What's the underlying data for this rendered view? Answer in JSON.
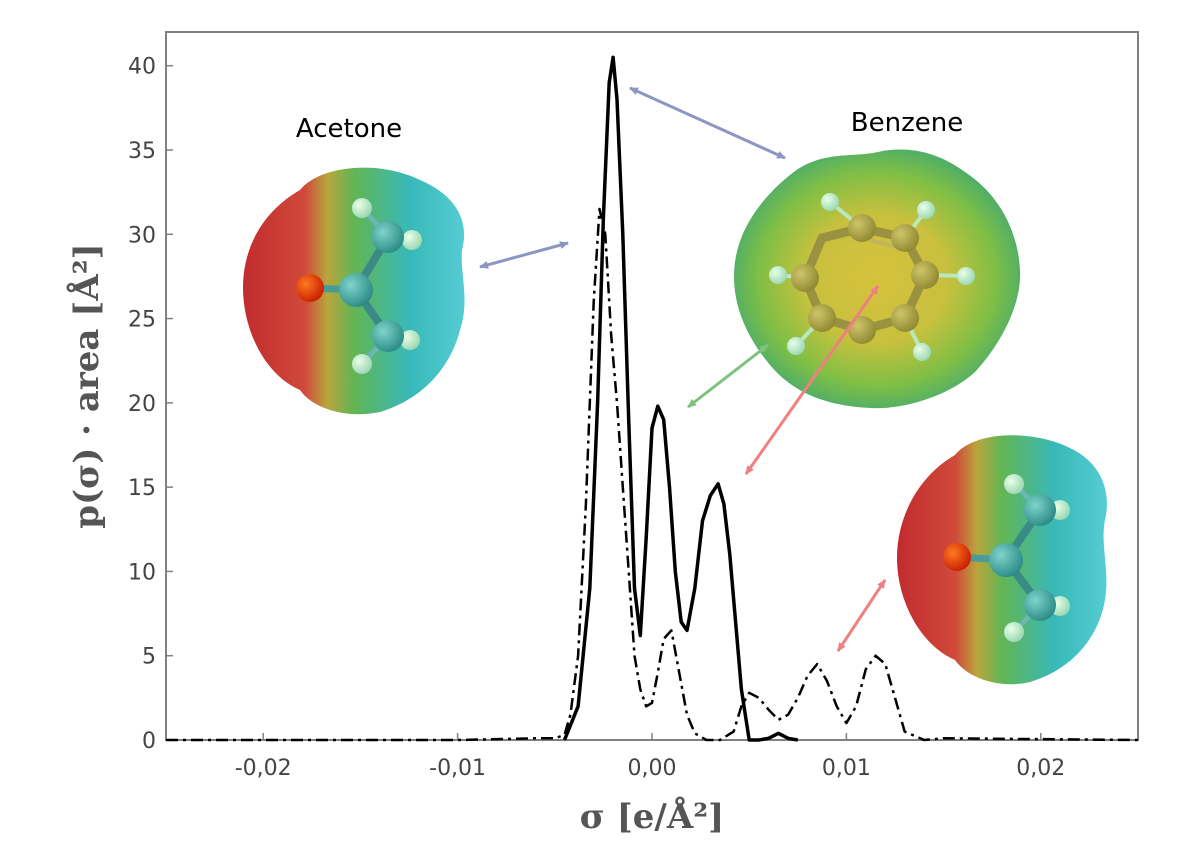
{
  "chart_data": {
    "type": "line",
    "xlabel": "σ [e/Å²]",
    "ylabel": "p(σ) · area [Å²]",
    "xlim": [
      -0.025,
      0.025
    ],
    "ylim": [
      0,
      42
    ],
    "x_ticks": [
      -0.02,
      -0.01,
      0.0,
      0.01,
      0.02
    ],
    "x_tick_labels": [
      "-0,02",
      "-0,01",
      "0,00",
      "0,01",
      "0,02"
    ],
    "y_ticks": [
      0,
      5,
      10,
      15,
      20,
      25,
      30,
      35,
      40
    ],
    "y_tick_labels": [
      "0",
      "5",
      "10",
      "15",
      "20",
      "25",
      "30",
      "35",
      "40"
    ],
    "grid": false,
    "series": [
      {
        "style": "solid",
        "x": [
          -0.0045,
          -0.0038,
          -0.0032,
          -0.0028,
          -0.0025,
          -0.0022,
          -0.002,
          -0.0018,
          -0.0015,
          -0.0012,
          -0.0009,
          -0.0006,
          -0.0003,
          0.0,
          0.0003,
          0.0006,
          0.0009,
          0.0012,
          0.0015,
          0.0018,
          0.0022,
          0.0026,
          0.003,
          0.0034,
          0.0037,
          0.004,
          0.0043,
          0.0046,
          0.005,
          0.0055,
          0.006,
          0.0065,
          0.007,
          0.0075
        ],
        "y": [
          0,
          2,
          9,
          20,
          31,
          39,
          40.5,
          38,
          30,
          19,
          9,
          6.2,
          12,
          18.5,
          19.8,
          19,
          15,
          10,
          7,
          6.5,
          9,
          13,
          14.5,
          15.2,
          14,
          11,
          7,
          3,
          0,
          0,
          0.1,
          0.4,
          0.1,
          0
        ]
      },
      {
        "style": "dash-dot",
        "x": [
          -0.025,
          -0.01,
          -0.006,
          -0.005,
          -0.0045,
          -0.0042,
          -0.0038,
          -0.0034,
          -0.003,
          -0.0027,
          -0.0024,
          -0.0021,
          -0.0018,
          -0.0015,
          -0.0012,
          -0.0009,
          -0.0006,
          -0.0003,
          0.0,
          0.0003,
          0.0006,
          0.001,
          0.0014,
          0.0018,
          0.0022,
          0.0028,
          0.0035,
          0.0042,
          0.0046,
          0.005,
          0.0055,
          0.006,
          0.0065,
          0.007,
          0.0075,
          0.008,
          0.0085,
          0.009,
          0.0095,
          0.01,
          0.0105,
          0.011,
          0.0115,
          0.012,
          0.0125,
          0.013,
          0.014,
          0.015,
          0.025
        ],
        "y": [
          0,
          0,
          0.1,
          0.1,
          0.3,
          1.5,
          5,
          14,
          26,
          31.5,
          30,
          24,
          20,
          15,
          10,
          5,
          3,
          2,
          2.2,
          4,
          6,
          6.5,
          4,
          1.5,
          0.4,
          0,
          0,
          0.5,
          2,
          2.8,
          2.5,
          1.8,
          1.2,
          1.5,
          2.5,
          3.8,
          4.5,
          3.5,
          2,
          1,
          2,
          4.2,
          5,
          4.5,
          2.5,
          0.5,
          0,
          0.1,
          0
        ]
      }
    ],
    "annotations": [
      "Acetone",
      "Benzene"
    ]
  },
  "colors": {
    "arrow_blue": "#8d96c0",
    "arrow_green": "#7fc27f",
    "arrow_red": "#f08080",
    "curve": "#000000",
    "axes": "#808080"
  }
}
